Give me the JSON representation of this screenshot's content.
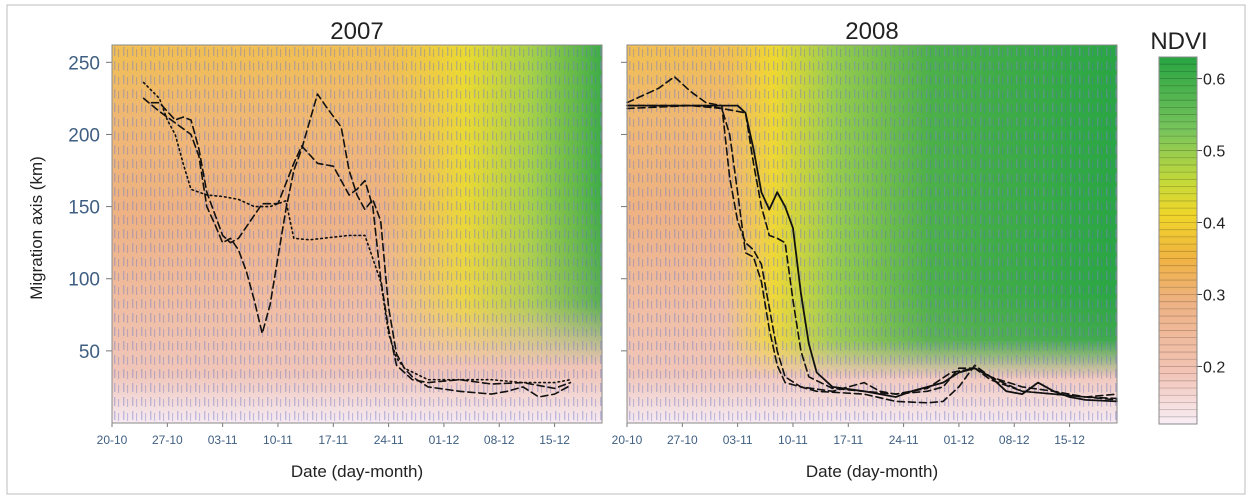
{
  "chart_data": {
    "type": "heatmap",
    "y_label": "Migration axis (km)",
    "x_label": "Date (day-month)",
    "x_ticks": [
      "20-10",
      "27-10",
      "03-11",
      "10-11",
      "17-11",
      "24-11",
      "01-12",
      "08-12",
      "15-12"
    ],
    "x_range": [
      "2007-10-20",
      "2007-12-21"
    ],
    "y_ticks": [
      50,
      100,
      150,
      200,
      250
    ],
    "y_range": [
      0,
      262
    ],
    "colorbar": {
      "title": "NDVI",
      "ticks": [
        0.2,
        0.3,
        0.4,
        0.5,
        0.6
      ],
      "range": [
        0.12,
        0.63
      ],
      "colors": [
        "#f8eef6",
        "#f2c4b6",
        "#eeb284",
        "#f0b342",
        "#f0d62a",
        "#c4d93a",
        "#78c45c",
        "#27a442"
      ]
    },
    "panels": [
      {
        "title": "2007",
        "series": [
          {
            "style": "dashed",
            "points": [
              [
                4,
                225
              ],
              [
                6,
                216
              ],
              [
                8,
                208
              ],
              [
                10,
                200
              ],
              [
                11,
                185
              ],
              [
                12,
                150
              ],
              [
                13,
                138
              ],
              [
                14,
                125
              ],
              [
                15,
                128
              ],
              [
                16,
                120
              ],
              [
                17,
                105
              ],
              [
                18,
                85
              ],
              [
                19,
                62
              ],
              [
                20,
                82
              ],
              [
                22,
                148
              ],
              [
                23,
                175
              ],
              [
                24,
                190
              ],
              [
                26,
                228
              ],
              [
                27,
                220
              ],
              [
                29,
                205
              ],
              [
                30,
                175
              ],
              [
                31,
                158
              ],
              [
                32,
                148
              ],
              [
                33,
                155
              ],
              [
                34,
                140
              ],
              [
                35,
                80
              ],
              [
                36,
                48
              ],
              [
                37,
                38
              ],
              [
                38,
                32
              ],
              [
                40,
                25
              ],
              [
                44,
                22
              ],
              [
                48,
                20
              ],
              [
                50,
                22
              ],
              [
                52,
                25
              ],
              [
                54,
                18
              ],
              [
                56,
                20
              ],
              [
                58,
                26
              ]
            ]
          },
          {
            "style": "dashed",
            "points": [
              [
                5,
                222
              ],
              [
                6,
                222
              ],
              [
                8,
                210
              ],
              [
                9,
                212
              ],
              [
                10,
                210
              ],
              [
                11,
                190
              ],
              [
                12,
                160
              ],
              [
                13,
                145
              ],
              [
                14,
                130
              ],
              [
                15,
                125
              ],
              [
                16,
                128
              ],
              [
                19,
                152
              ],
              [
                21,
                152
              ],
              [
                23,
                180
              ],
              [
                24,
                192
              ],
              [
                26,
                180
              ],
              [
                28,
                178
              ],
              [
                30,
                158
              ],
              [
                31,
                162
              ],
              [
                32,
                168
              ],
              [
                33,
                150
              ],
              [
                34,
                100
              ],
              [
                35,
                65
              ],
              [
                36,
                40
              ],
              [
                38,
                30
              ],
              [
                40,
                28
              ],
              [
                44,
                30
              ],
              [
                48,
                27
              ],
              [
                52,
                28
              ],
              [
                56,
                24
              ],
              [
                58,
                28
              ]
            ]
          },
          {
            "style": "dotted",
            "points": [
              [
                4,
                236
              ],
              [
                6,
                225
              ],
              [
                7,
                210
              ],
              [
                8,
                200
              ],
              [
                9,
                180
              ],
              [
                10,
                162
              ],
              [
                12,
                158
              ],
              [
                14,
                157
              ],
              [
                16,
                155
              ],
              [
                18,
                150
              ],
              [
                20,
                150
              ],
              [
                22,
                154
              ],
              [
                23,
                128
              ],
              [
                25,
                127
              ],
              [
                30,
                130
              ],
              [
                32,
                130
              ],
              [
                34,
                98
              ],
              [
                35,
                62
              ],
              [
                36,
                45
              ],
              [
                37,
                38
              ],
              [
                40,
                30
              ],
              [
                44,
                30
              ],
              [
                48,
                30
              ],
              [
                52,
                28
              ],
              [
                56,
                28
              ],
              [
                58,
                30
              ]
            ]
          }
        ]
      },
      {
        "title": "2008",
        "series": [
          {
            "style": "solid",
            "points": [
              [
                0,
                220
              ],
              [
                10,
                220
              ],
              [
                14,
                220
              ],
              [
                15,
                215
              ],
              [
                16,
                190
              ],
              [
                17,
                160
              ],
              [
                18,
                148
              ],
              [
                19,
                160
              ],
              [
                20,
                150
              ],
              [
                21,
                135
              ],
              [
                22,
                90
              ],
              [
                23,
                55
              ],
              [
                24,
                35
              ],
              [
                26,
                25
              ],
              [
                30,
                22
              ],
              [
                32,
                20
              ],
              [
                34,
                18
              ],
              [
                36,
                22
              ],
              [
                40,
                28
              ],
              [
                42,
                35
              ],
              [
                44,
                38
              ],
              [
                46,
                32
              ],
              [
                48,
                22
              ],
              [
                50,
                20
              ],
              [
                52,
                28
              ],
              [
                54,
                22
              ],
              [
                56,
                18
              ],
              [
                58,
                16
              ],
              [
                62,
                15
              ]
            ]
          },
          {
            "style": "dashed",
            "points": [
              [
                0,
                220
              ],
              [
                10,
                220
              ],
              [
                15,
                215
              ],
              [
                16,
                180
              ],
              [
                17,
                150
              ],
              [
                18,
                130
              ],
              [
                19,
                128
              ],
              [
                20,
                125
              ],
              [
                21,
                85
              ],
              [
                22,
                50
              ],
              [
                23,
                32
              ],
              [
                26,
                24
              ],
              [
                30,
                22
              ],
              [
                34,
                20
              ],
              [
                38,
                24
              ],
              [
                41,
                35
              ],
              [
                44,
                38
              ],
              [
                46,
                30
              ],
              [
                50,
                22
              ],
              [
                54,
                20
              ],
              [
                58,
                18
              ],
              [
                62,
                17
              ]
            ]
          },
          {
            "style": "dashed",
            "points": [
              [
                0,
                222
              ],
              [
                4,
                232
              ],
              [
                6,
                240
              ],
              [
                8,
                230
              ],
              [
                10,
                222
              ],
              [
                12,
                220
              ],
              [
                13,
                170
              ],
              [
                14,
                140
              ],
              [
                15,
                125
              ],
              [
                16,
                120
              ],
              [
                17,
                110
              ],
              [
                18,
                80
              ],
              [
                19,
                50
              ],
              [
                20,
                32
              ],
              [
                22,
                25
              ],
              [
                26,
                22
              ],
              [
                30,
                28
              ],
              [
                32,
                22
              ],
              [
                34,
                20
              ],
              [
                38,
                22
              ],
              [
                40,
                25
              ],
              [
                42,
                38
              ],
              [
                44,
                38
              ],
              [
                46,
                32
              ],
              [
                50,
                22
              ],
              [
                54,
                20
              ],
              [
                58,
                18
              ],
              [
                62,
                20
              ]
            ]
          },
          {
            "style": "dashed",
            "points": [
              [
                0,
                218
              ],
              [
                8,
                220
              ],
              [
                12,
                218
              ],
              [
                13,
                200
              ],
              [
                14,
                160
              ],
              [
                15,
                118
              ],
              [
                16,
                115
              ],
              [
                17,
                98
              ],
              [
                18,
                65
              ],
              [
                19,
                40
              ],
              [
                20,
                28
              ],
              [
                24,
                22
              ],
              [
                30,
                20
              ],
              [
                34,
                15
              ],
              [
                38,
                14
              ],
              [
                40,
                15
              ],
              [
                42,
                25
              ],
              [
                44,
                40
              ],
              [
                46,
                32
              ],
              [
                50,
                25
              ],
              [
                54,
                22
              ],
              [
                58,
                18
              ],
              [
                62,
                16
              ]
            ]
          }
        ]
      }
    ]
  }
}
